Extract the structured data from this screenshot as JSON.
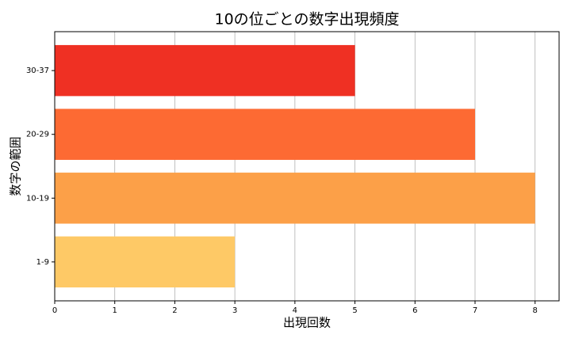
{
  "chart_data": {
    "type": "barh",
    "title": "10の位ごとの数字出現頻度",
    "x_label": "出現回数",
    "y_label": "数字の範囲",
    "categories": [
      "1-9",
      "10-19",
      "20-29",
      "30-37"
    ],
    "values": [
      3,
      8,
      7,
      5
    ],
    "colors": [
      "#fec966",
      "#fca048",
      "#fd6a33",
      "#ef3023"
    ],
    "xlim": [
      0,
      8.4
    ],
    "xticks": [
      0,
      1,
      2,
      3,
      4,
      5,
      6,
      7,
      8
    ],
    "grid": true
  }
}
